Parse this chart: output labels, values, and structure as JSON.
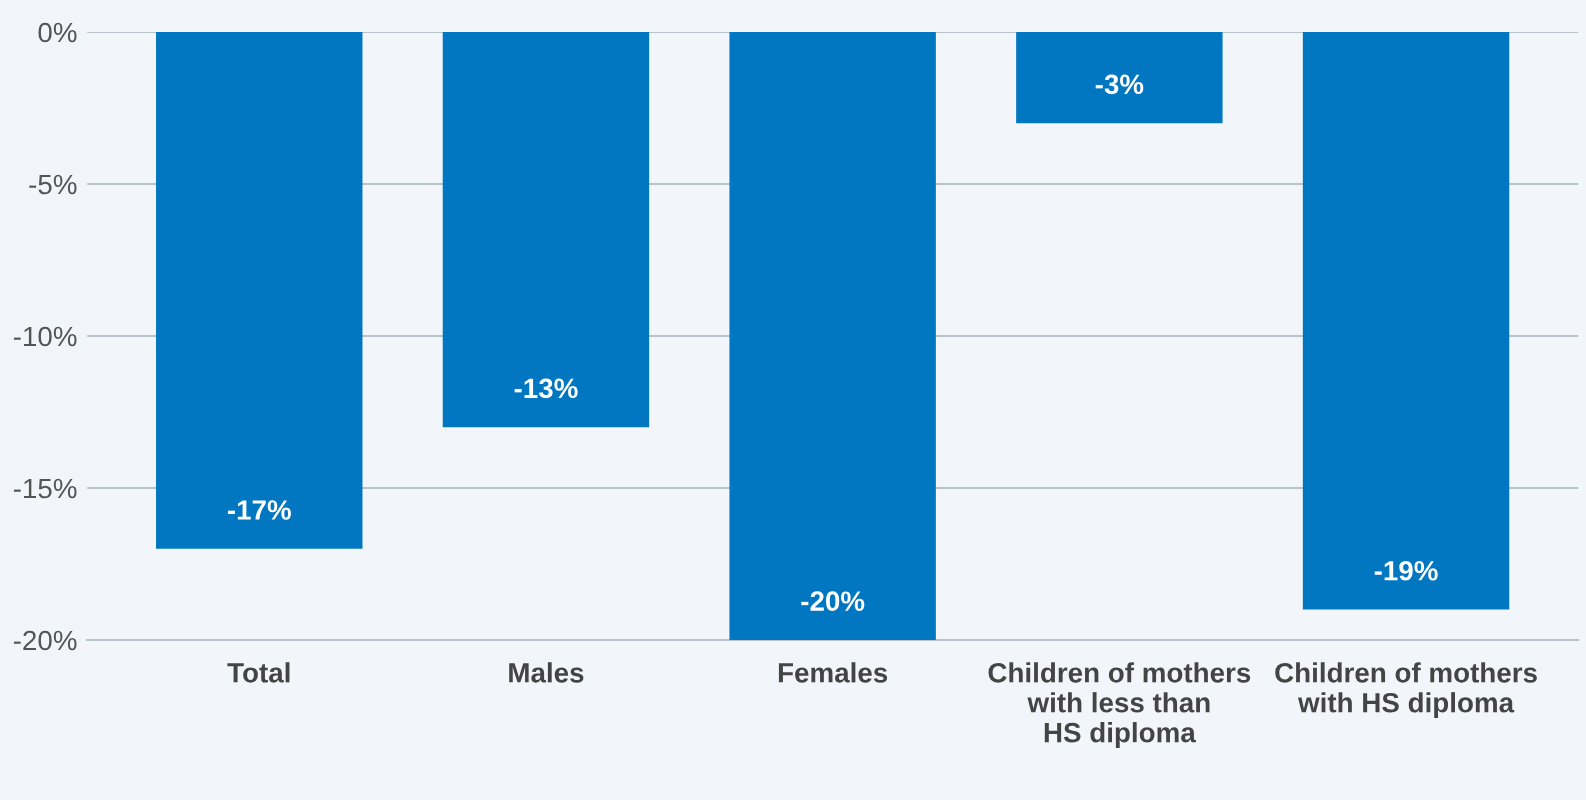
{
  "chart_data": {
    "type": "bar",
    "categories": [
      "Total",
      "Males",
      "Females",
      "Children of mothers\nwith less than\nHS diploma",
      "Children of mothers\nwith HS diploma"
    ],
    "values": [
      -17,
      -13,
      -20,
      -3,
      -19
    ],
    "value_labels": [
      "-17%",
      "-13%",
      "-20%",
      "-3%",
      "-19%"
    ],
    "color": "#0077c0",
    "ylim": [
      -20,
      0
    ],
    "yticks": [
      {
        "value": 0,
        "label": "0%"
      },
      {
        "value": -5,
        "label": "-5%"
      },
      {
        "value": -10,
        "label": "-10%"
      },
      {
        "value": -15,
        "label": "-15%"
      },
      {
        "value": -20,
        "label": "-20%"
      }
    ],
    "grid": "y"
  }
}
